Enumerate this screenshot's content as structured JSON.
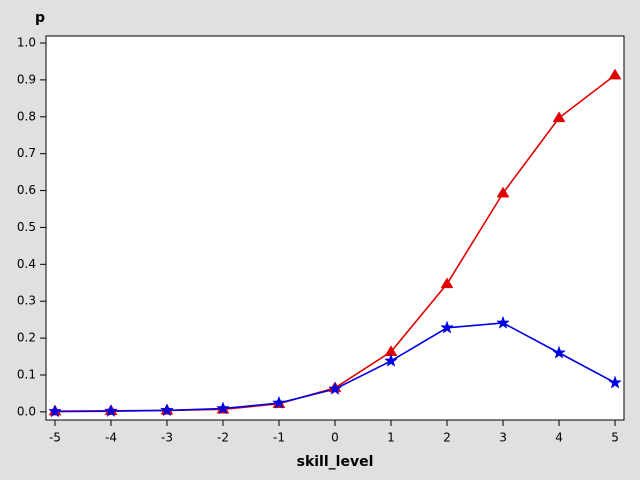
{
  "chart_data": {
    "type": "line",
    "x_label": "skill_level",
    "y_label": "p",
    "x": [
      -5,
      -4,
      -3,
      -2,
      -1,
      0,
      1,
      2,
      3,
      4,
      5
    ],
    "series": [
      {
        "color": "#e00000",
        "marker": "triangle",
        "values": [
          0.002,
          0.003,
          0.004,
          0.007,
          0.022,
          0.065,
          0.163,
          0.347,
          0.593,
          0.797,
          0.913
        ]
      },
      {
        "color": "#0000e0",
        "marker": "star",
        "values": [
          0.001,
          0.002,
          0.004,
          0.009,
          0.024,
          0.062,
          0.138,
          0.228,
          0.241,
          0.16,
          0.079
        ]
      }
    ],
    "xlim": [
      -5.16,
      5.16
    ],
    "xticks": [
      -5,
      -4,
      -3,
      -2,
      -1,
      0,
      1,
      2,
      3,
      4,
      5
    ],
    "ylim": [
      -0.022,
      1.019
    ],
    "yticks": [
      {
        "value": 0,
        "label": "0.0"
      },
      0.1,
      0.2,
      0.3,
      0.4,
      0.5,
      0.6,
      0.7,
      0.8,
      0.9,
      {
        "value": 1,
        "label": "1.0"
      }
    ],
    "grid": false
  }
}
